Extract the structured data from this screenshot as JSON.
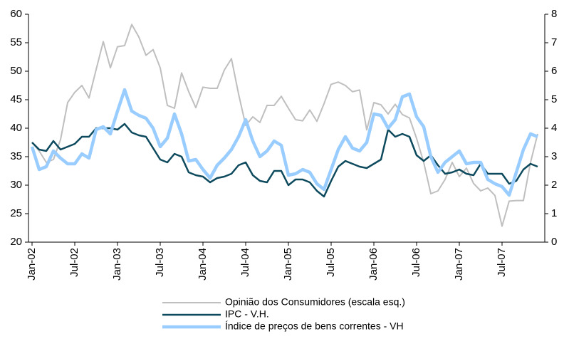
{
  "chart_data": {
    "type": "line",
    "categories": [
      "Jan-02",
      null,
      null,
      null,
      null,
      null,
      "Jul-02",
      null,
      null,
      null,
      null,
      null,
      "Jan-03",
      null,
      null,
      null,
      null,
      null,
      "Jul-03",
      null,
      null,
      null,
      null,
      null,
      "Jan-04",
      null,
      null,
      null,
      null,
      null,
      "Jul-04",
      null,
      null,
      null,
      null,
      null,
      "Jan-05",
      null,
      null,
      null,
      null,
      null,
      "Jul-05",
      null,
      null,
      null,
      null,
      null,
      "Jan-06",
      null,
      null,
      null,
      null,
      null,
      "Jul-06",
      null,
      null,
      null,
      null,
      null,
      "Jan-07",
      null,
      null,
      null,
      null,
      null,
      "Jul-07",
      null,
      null,
      null,
      null,
      null
    ],
    "ylim": [
      20,
      60
    ],
    "yticks": [
      20,
      25,
      30,
      35,
      40,
      45,
      50,
      55,
      60
    ],
    "y2lim": [
      0,
      8
    ],
    "y2ticks": [
      0,
      1,
      2,
      3,
      4,
      5,
      6,
      7,
      8
    ],
    "series": [
      {
        "name": "Opinião dos Consumidores (escala esq.)",
        "color": "#bfbfbf",
        "axis": "y",
        "values": [
          37.5,
          36,
          34,
          34.5,
          38,
          44.5,
          46.3,
          47.5,
          45.3,
          50.3,
          55.2,
          50.6,
          54.3,
          54.5,
          58.2,
          56,
          52.8,
          53.8,
          50.6,
          44,
          43.5,
          49.7,
          46.4,
          43.6,
          47.2,
          47,
          47,
          50.2,
          52.2,
          46,
          40.5,
          42,
          41,
          44,
          44,
          45.6,
          43.5,
          41.5,
          41.3,
          43.2,
          41.2,
          44.3,
          47.7,
          48.1,
          47.5,
          46.4,
          46.7,
          39.7,
          44.5,
          44.1,
          42.5,
          44.2,
          42.4,
          41.8,
          38.2,
          34,
          28.5,
          29,
          31,
          34,
          31.5,
          33,
          30.3,
          29,
          29.5,
          28.2,
          22.8,
          27.2,
          27.3,
          27.3,
          34,
          39
        ]
      },
      {
        "name": "IPC - V.H.",
        "color": "#0e4a5e",
        "axis": "y2",
        "values": [
          3.5,
          3.25,
          3.2,
          3.55,
          3.25,
          3.35,
          3.45,
          3.7,
          3.7,
          4.0,
          4.0,
          4.0,
          3.95,
          4.15,
          3.85,
          3.75,
          3.7,
          3.3,
          2.9,
          2.8,
          3.1,
          3.0,
          2.45,
          2.35,
          2.3,
          2.1,
          2.25,
          2.3,
          2.4,
          2.7,
          2.8,
          2.35,
          2.15,
          2.1,
          2.5,
          2.5,
          2.0,
          2.2,
          2.2,
          2.1,
          1.8,
          1.6,
          2.15,
          2.65,
          2.85,
          2.75,
          2.65,
          2.6,
          2.75,
          2.9,
          3.95,
          3.7,
          3.8,
          3.7,
          3.05,
          2.85,
          3.05,
          2.7,
          2.4,
          2.45,
          2.55,
          2.4,
          2.35,
          2.75,
          2.4,
          2.4,
          2.4,
          2.05,
          2.15,
          2.55,
          2.75,
          2.65
        ]
      },
      {
        "name": "Índice de preços de bens correntes - VH",
        "color": "#99ccff",
        "axis": "y2",
        "values": [
          3.35,
          2.55,
          2.65,
          3.2,
          2.95,
          2.75,
          2.75,
          3.1,
          2.95,
          3.95,
          4.05,
          3.8,
          4.6,
          5.35,
          4.6,
          4.45,
          4.35,
          4.0,
          3.35,
          3.65,
          4.5,
          3.8,
          2.85,
          2.9,
          2.55,
          2.25,
          2.7,
          2.95,
          3.25,
          3.7,
          4.3,
          3.55,
          3.0,
          3.2,
          3.55,
          3.4,
          2.35,
          2.4,
          2.55,
          2.45,
          2.05,
          1.85,
          2.55,
          3.25,
          3.7,
          3.3,
          3.2,
          3.5,
          4.5,
          4.45,
          4.0,
          4.3,
          5.1,
          5.2,
          4.4,
          4.05,
          3.0,
          2.45,
          2.8,
          3.0,
          3.2,
          2.75,
          2.8,
          2.8,
          2.2,
          2.05,
          1.95,
          1.65,
          2.45,
          3.25,
          3.8,
          3.7
        ]
      }
    ]
  }
}
